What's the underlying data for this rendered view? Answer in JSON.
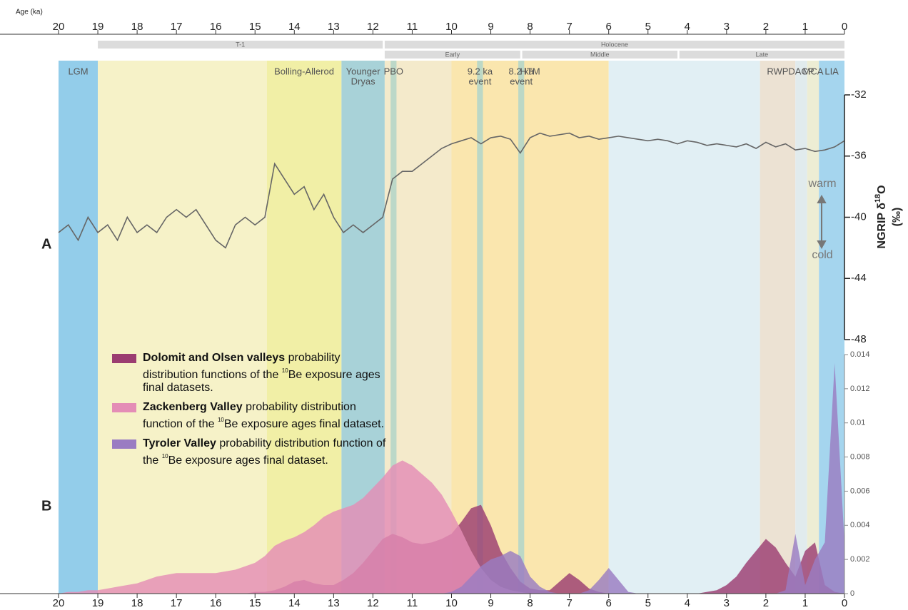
{
  "chart_data": [
    {
      "type": "line",
      "x_label": "Age (ka)",
      "y_label": [
        "NGRIP δ",
        "18",
        "O",
        "(‰)"
      ],
      "panel": "A",
      "color": "#666666",
      "xlim": [
        20,
        0
      ],
      "xticks": [
        20,
        19,
        18,
        17,
        16,
        15,
        14,
        13,
        12,
        11,
        10,
        9,
        8,
        7,
        6,
        5,
        4,
        3,
        2,
        1,
        0
      ],
      "ylim": [
        -48,
        -32
      ],
      "yticks": [
        -32,
        -36,
        -40,
        -44,
        -48
      ],
      "annotations": [
        "warm",
        "cold"
      ],
      "periods": [
        {
          "name": "T-1",
          "range": [
            19,
            11.75
          ]
        },
        {
          "name": "Holocene",
          "range": [
            11.7,
            0
          ]
        }
      ],
      "subperiods": [
        {
          "name": "Early",
          "range": [
            11.7,
            8.25
          ]
        },
        {
          "name": "Middle",
          "range": [
            8.2,
            4.25
          ]
        },
        {
          "name": "Late",
          "range": [
            4.2,
            0
          ]
        }
      ],
      "bands": [
        {
          "lines": [
            "LGM"
          ],
          "range": [
            20,
            19
          ],
          "color": "#93cdea"
        },
        {
          "range": [
            19,
            14.7
          ],
          "color": "#f6f2c8"
        },
        {
          "lines": [
            "Bolling-Allerod"
          ],
          "range": [
            14.7,
            12.8
          ],
          "color": "#f1efa6"
        },
        {
          "lines": [
            "Younger",
            "Dryas"
          ],
          "range": [
            12.8,
            11.7
          ],
          "color": "#a8d2d8"
        },
        {
          "range": [
            11.7,
            10
          ],
          "color": "#f4eacb"
        },
        {
          "lines": [
            "PBO"
          ],
          "range": [
            11.55,
            11.4
          ],
          "color": "#bcd8c8"
        },
        {
          "lines": [
            "HTM"
          ],
          "range": [
            10,
            6
          ],
          "color": "#fae6ae"
        },
        {
          "lines": [
            "9.2 ka",
            "event"
          ],
          "range": [
            9.35,
            9.2
          ],
          "color": "#bcd8c6"
        },
        {
          "lines": [
            "8.2 ka",
            "event"
          ],
          "range": [
            8.3,
            8.15
          ],
          "color": "#bcd8c6"
        },
        {
          "range": [
            6,
            2.15
          ],
          "color": "#e1eff4"
        },
        {
          "lines": [
            "RWP"
          ],
          "range": [
            2.15,
            1.25
          ],
          "color": "#ece2d3"
        },
        {
          "lines": [
            "DACP"
          ],
          "range": [
            1.25,
            0.95
          ],
          "color": "#e1ebed"
        },
        {
          "lines": [
            "MCA"
          ],
          "range": [
            0.95,
            0.65
          ],
          "color": "#ededd4"
        },
        {
          "lines": [
            "LIA"
          ],
          "range": [
            0.65,
            0
          ],
          "color": "#a5d5ee"
        }
      ],
      "x": [
        20,
        19.75,
        19.5,
        19.25,
        19,
        18.75,
        18.5,
        18.25,
        18,
        17.75,
        17.5,
        17.25,
        17,
        16.75,
        16.5,
        16.25,
        16,
        15.75,
        15.5,
        15.25,
        15,
        14.75,
        14.5,
        14.25,
        14,
        13.75,
        13.5,
        13.25,
        13,
        12.75,
        12.5,
        12.25,
        12,
        11.75,
        11.5,
        11.25,
        11,
        10.75,
        10.5,
        10.25,
        10,
        9.75,
        9.5,
        9.25,
        9,
        8.75,
        8.5,
        8.25,
        8,
        7.75,
        7.5,
        7.25,
        7,
        6.75,
        6.5,
        6.25,
        6,
        5.75,
        5.5,
        5.25,
        5,
        4.75,
        4.5,
        4.25,
        4,
        3.75,
        3.5,
        3.25,
        3,
        2.75,
        2.5,
        2.25,
        2,
        1.75,
        1.5,
        1.25,
        1,
        0.75,
        0.5,
        0.25,
        0
      ],
      "values": [
        -41,
        -40.5,
        -41.5,
        -40,
        -41,
        -40.5,
        -41.5,
        -40,
        -41,
        -40.5,
        -41,
        -40,
        -39.5,
        -40,
        -39.5,
        -40.5,
        -41.5,
        -42,
        -40.5,
        -40,
        -40.5,
        -40,
        -36.5,
        -37.5,
        -38.5,
        -38,
        -39.5,
        -38.5,
        -40,
        -41,
        -40.5,
        -41,
        -40.5,
        -40,
        -37.5,
        -37,
        -37,
        -36.5,
        -36,
        -35.5,
        -35.2,
        -35,
        -34.8,
        -35.2,
        -34.8,
        -34.7,
        -34.9,
        -35.8,
        -34.8,
        -34.5,
        -34.7,
        -34.6,
        -34.5,
        -34.8,
        -34.7,
        -34.9,
        -34.8,
        -34.7,
        -34.8,
        -34.9,
        -35,
        -34.9,
        -35,
        -35.2,
        -35,
        -35.1,
        -35.3,
        -35.2,
        -35.3,
        -35.4,
        -35.2,
        -35.5,
        -35.1,
        -35.4,
        -35.2,
        -35.6,
        -35.5,
        -35.7,
        -35.6,
        -35.4,
        -35
      ]
    },
    {
      "type": "area",
      "panel": "B",
      "xlim": [
        20,
        0
      ],
      "xticks": [
        20,
        19,
        18,
        17,
        16,
        15,
        14,
        13,
        12,
        11,
        10,
        9,
        8,
        7,
        6,
        5,
        4,
        3,
        2,
        1,
        0
      ],
      "ylim": [
        0,
        0.014
      ],
      "yticks": [
        0,
        0.002,
        0.004,
        0.006,
        0.008,
        0.01,
        0.012,
        0.014
      ],
      "x": [
        20,
        19.75,
        19.5,
        19.25,
        19,
        18.75,
        18.5,
        18.25,
        18,
        17.75,
        17.5,
        17.25,
        17,
        16.75,
        16.5,
        16.25,
        16,
        15.75,
        15.5,
        15.25,
        15,
        14.75,
        14.5,
        14.25,
        14,
        13.75,
        13.5,
        13.25,
        13,
        12.75,
        12.5,
        12.25,
        12,
        11.75,
        11.5,
        11.25,
        11,
        10.75,
        10.5,
        10.25,
        10,
        9.75,
        9.5,
        9.25,
        9,
        8.75,
        8.5,
        8.25,
        8,
        7.75,
        7.5,
        7.25,
        7,
        6.75,
        6.5,
        6.25,
        6,
        5.75,
        5.5,
        5.25,
        5,
        4.75,
        4.5,
        4.25,
        4,
        3.75,
        3.5,
        3.25,
        3,
        2.75,
        2.5,
        2.25,
        2,
        1.75,
        1.5,
        1.25,
        1,
        0.75,
        0.5,
        0.25,
        0
      ],
      "series": [
        {
          "name": "Dolomit and Olsen valleys",
          "desc": [
            "probability distribution functions of the",
            "10",
            "Be exposure ages final datasets."
          ],
          "color": "#9b3d71",
          "values": [
            0,
            0,
            0,
            0,
            0,
            0,
            0,
            0,
            0,
            0,
            0,
            0,
            0,
            0,
            0,
            0,
            0,
            0,
            0,
            0,
            0.0001,
            0.0001,
            0.0002,
            0.0004,
            0.0007,
            0.0008,
            0.0006,
            0.0005,
            0.0005,
            0.0008,
            0.0012,
            0.0018,
            0.0025,
            0.0032,
            0.0035,
            0.0033,
            0.003,
            0.0029,
            0.003,
            0.0032,
            0.0035,
            0.0042,
            0.005,
            0.0052,
            0.004,
            0.0025,
            0.0015,
            0.0007,
            0.0003,
            0.0002,
            0.0002,
            0.0007,
            0.0012,
            0.0008,
            0.0003,
            0.0001,
            0,
            0,
            0,
            0,
            0,
            0,
            0,
            0,
            0,
            0,
            0.0001,
            0.0002,
            0.0005,
            0.001,
            0.0018,
            0.0025,
            0.0032,
            0.0027,
            0.0018,
            0.001,
            0.0025,
            0.003,
            0.0005,
            0.0001,
            0
          ]
        },
        {
          "name": "Zackenberg Valley",
          "desc": [
            "probability distribution function of the",
            "10",
            "Be exposure ages final dataset."
          ],
          "color": "#e48db6",
          "values": [
            0,
            0.0001,
            0.0001,
            0.0002,
            0.0002,
            0.0003,
            0.0004,
            0.0005,
            0.0006,
            0.0008,
            0.001,
            0.0011,
            0.0012,
            0.0012,
            0.0012,
            0.0012,
            0.0012,
            0.0013,
            0.0014,
            0.0016,
            0.0018,
            0.0022,
            0.0028,
            0.0031,
            0.0033,
            0.0036,
            0.004,
            0.0045,
            0.0048,
            0.005,
            0.0052,
            0.0056,
            0.0062,
            0.0068,
            0.0075,
            0.0078,
            0.0075,
            0.007,
            0.0065,
            0.0058,
            0.0048,
            0.0037,
            0.0025,
            0.0015,
            0.0008,
            0.0004,
            0.0002,
            0.0001,
            0,
            0,
            0,
            0,
            0,
            0,
            0,
            0,
            0,
            0,
            0,
            0,
            0,
            0,
            0,
            0,
            0,
            0,
            0,
            0,
            0,
            0,
            0,
            0,
            0,
            0,
            0,
            0,
            0,
            0,
            0,
            0,
            0
          ]
        },
        {
          "name": "Tyroler Valley",
          "desc": [
            "probability distribution function of the",
            "10",
            "Be exposure ages final dataset."
          ],
          "color": "#9a7cc2",
          "values": [
            0,
            0,
            0,
            0,
            0,
            0,
            0,
            0,
            0,
            0,
            0,
            0,
            0,
            0,
            0,
            0,
            0,
            0,
            0,
            0,
            0,
            0,
            0,
            0,
            0,
            0,
            0,
            0,
            0,
            0,
            0,
            0,
            0,
            0,
            0,
            0,
            0,
            0,
            0,
            0,
            0.0001,
            0.0004,
            0.001,
            0.0016,
            0.002,
            0.0022,
            0.0025,
            0.0022,
            0.001,
            0.0004,
            0.0001,
            0,
            0,
            0,
            0.0002,
            0.0008,
            0.0015,
            0.0008,
            0.0001,
            0,
            0,
            0,
            0,
            0,
            0,
            0,
            0,
            0,
            0,
            0,
            0,
            0,
            0,
            0,
            0.0002,
            0.0035,
            0.0005,
            0.002,
            0.003,
            0.0135,
            0.003
          ]
        }
      ]
    }
  ]
}
